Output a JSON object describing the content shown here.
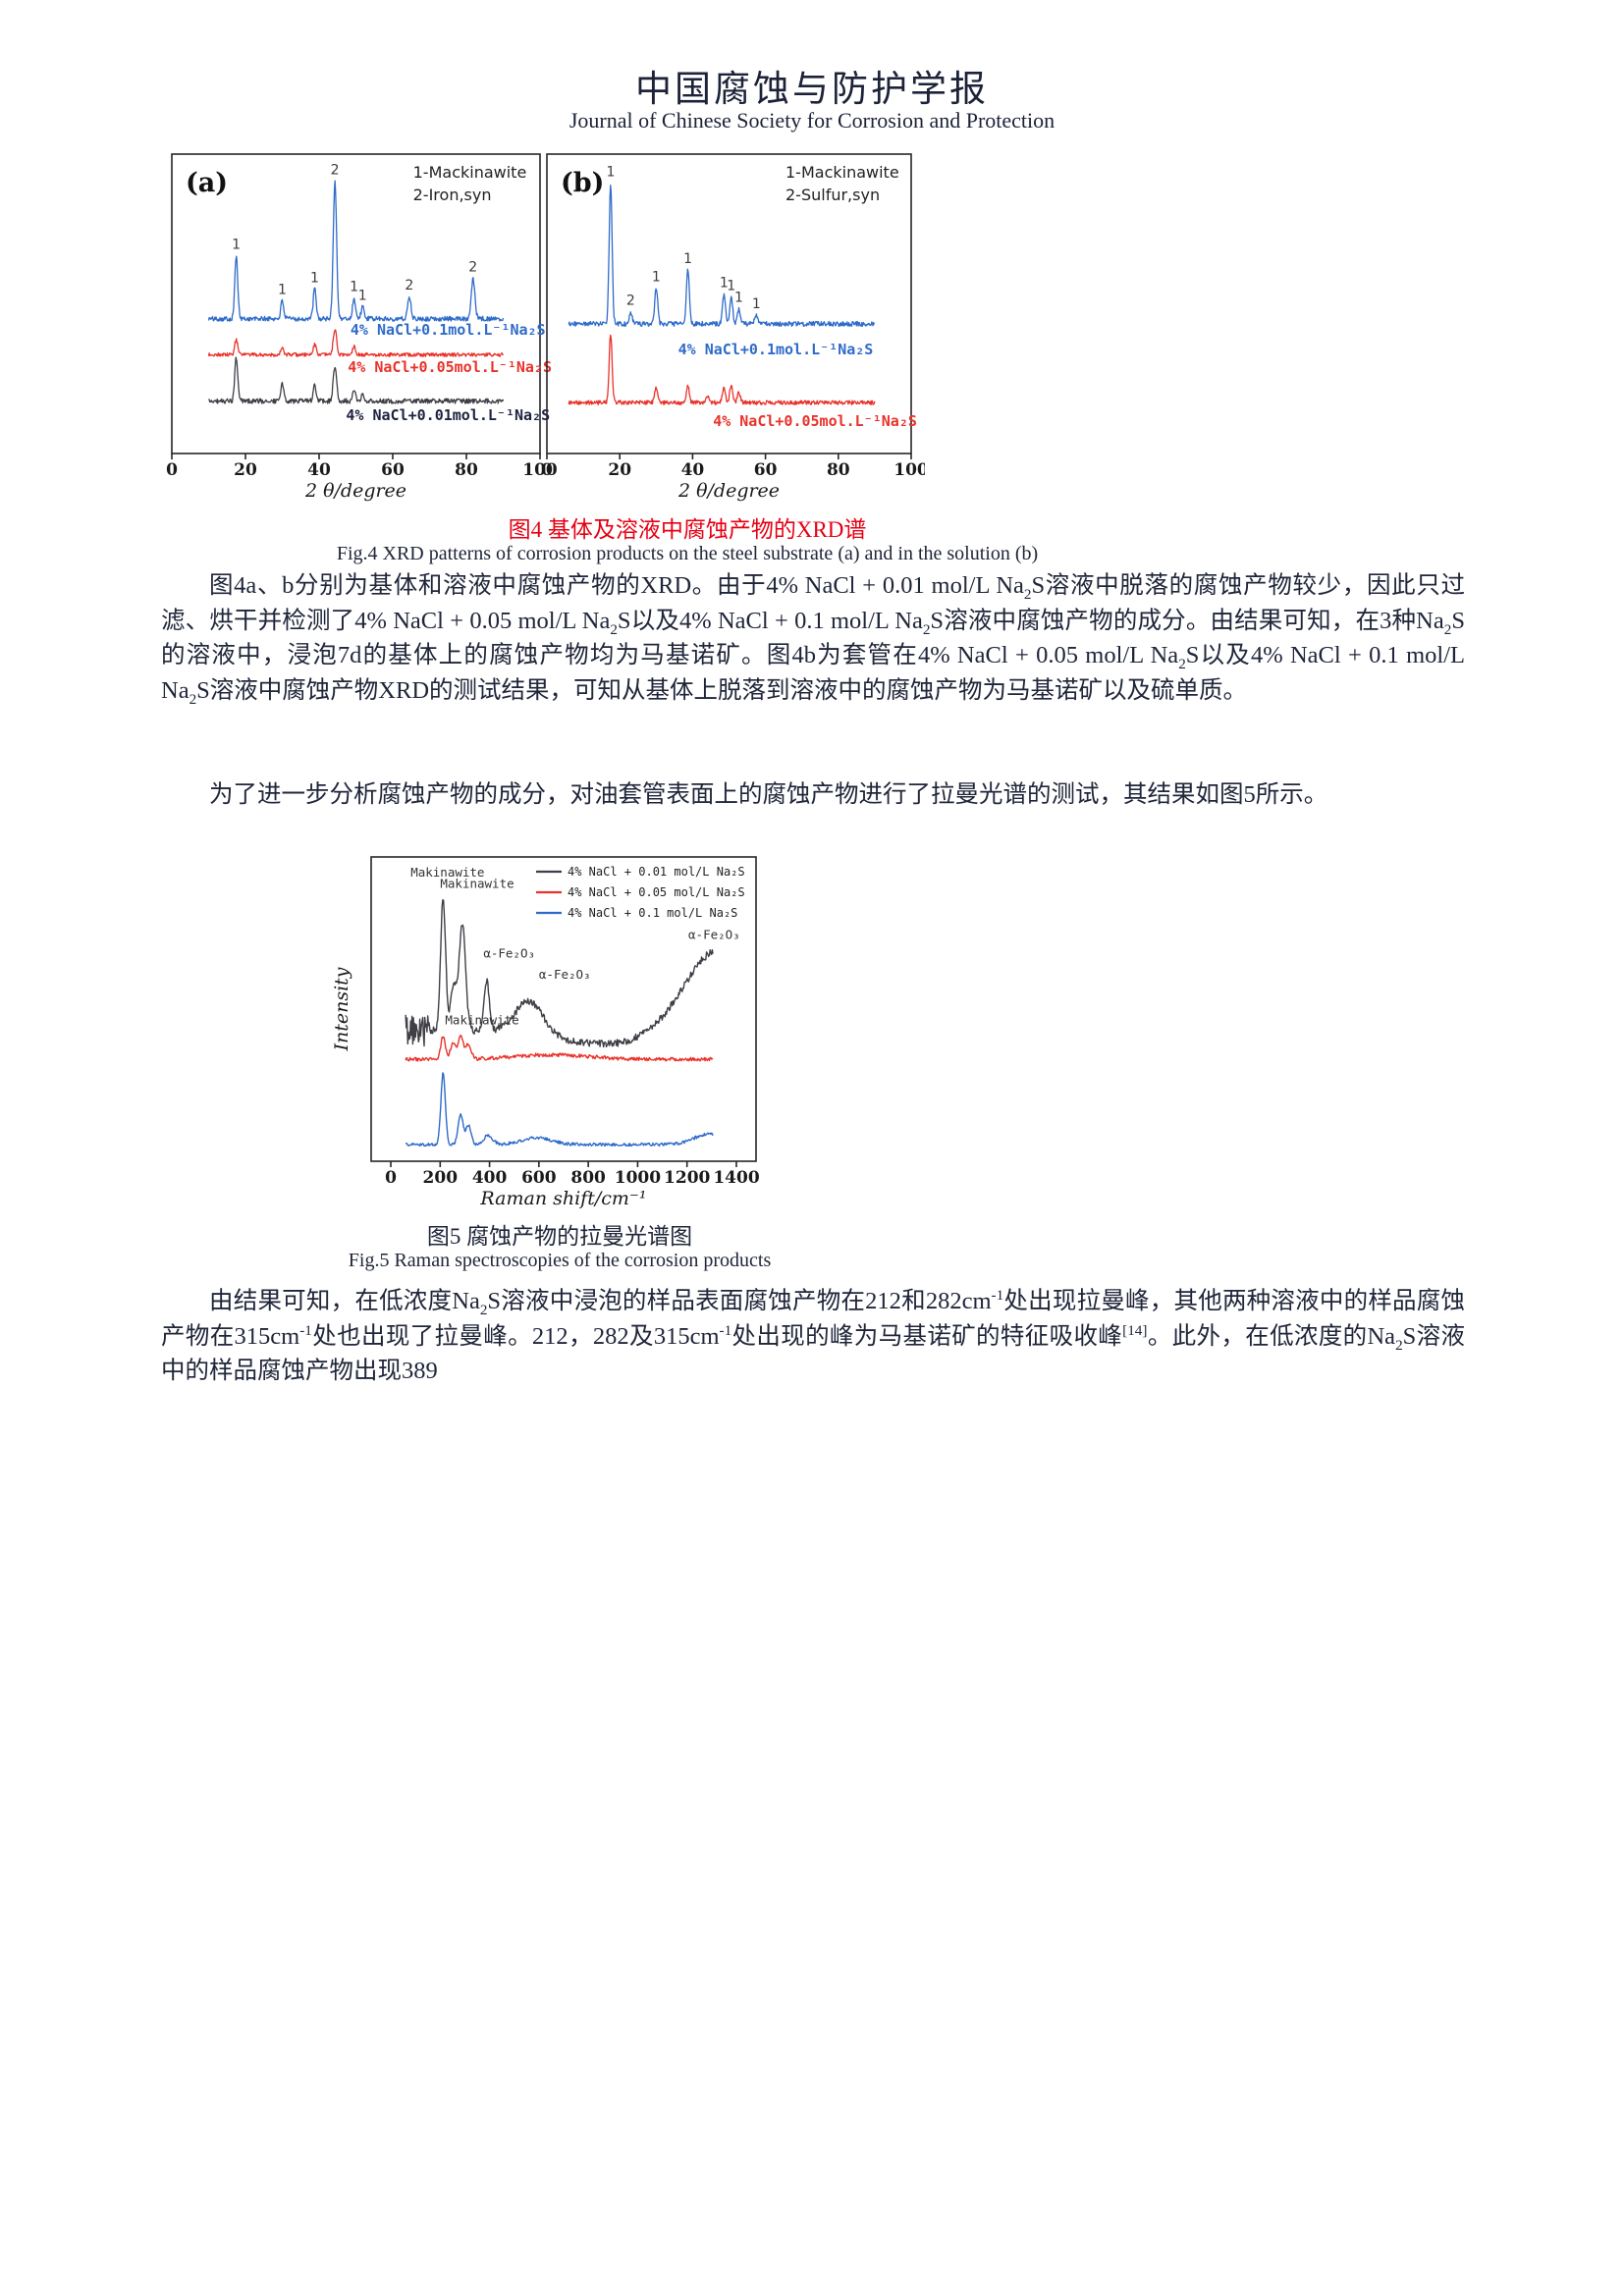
{
  "header": {
    "title_zh": "中国腐蚀与防护学报",
    "title_en": "Journal of Chinese Society for Corrosion and Protection"
  },
  "fig4": {
    "caption_zh": "图4 基体及溶液中腐蚀产物的XRD谱",
    "caption_en": "Fig.4 XRD patterns of corrosion products on the steel substrate (a) and in the solution (b)"
  },
  "fig5": {
    "caption_zh": "图5 腐蚀产物的拉曼光谱图",
    "caption_en": "Fig.5 Raman spectroscopies of the corrosion products"
  },
  "paragraphs": {
    "p1": [
      {
        "t": "图4a、b分别为基体和溶液中腐蚀产物的XRD。由于4% NaCl + 0.01 mol/L Na"
      },
      {
        "t": "2",
        "sub": true
      },
      {
        "t": "S溶液中脱落的腐蚀产物较少，因此只过滤、烘干并检测了4% NaCl + 0.05 mol/L Na"
      },
      {
        "t": "2",
        "sub": true
      },
      {
        "t": "S以及4% NaCl + 0.1 mol/L  Na"
      },
      {
        "t": "2",
        "sub": true
      },
      {
        "t": "S溶液中腐蚀产物的成分。由结果可知，在3种Na"
      },
      {
        "t": "2",
        "sub": true
      },
      {
        "t": "S的溶液中，浸泡7d的基体上的腐蚀产物均为马基诺矿。图4b为套管在4% NaCl + 0.05 mol/L Na"
      },
      {
        "t": "2",
        "sub": true
      },
      {
        "t": "S以及4% NaCl + 0.1 mol/L Na"
      },
      {
        "t": "2",
        "sub": true
      },
      {
        "t": "S溶液中腐蚀产物XRD的测试结果，可知从基体上脱落到溶液中的腐蚀产物为马基诺矿以及硫单质。"
      }
    ],
    "p2": [
      {
        "t": "为了进一步分析腐蚀产物的成分，对油套管表面上的腐蚀产物进行了拉曼光谱的测试，其结果如图5所示。"
      }
    ],
    "p3": [
      {
        "t": "由结果可知，在低浓度Na"
      },
      {
        "t": "2",
        "sub": true
      },
      {
        "t": "S溶液中浸泡的样品表面腐蚀产物在212和282cm"
      },
      {
        "t": "-1",
        "sup": true
      },
      {
        "t": "处出现拉曼峰，其他两种溶液中的样品腐蚀产物在315cm"
      },
      {
        "t": "-1",
        "sup": true
      },
      {
        "t": "处也出现了拉曼峰。212，282及315cm"
      },
      {
        "t": "-1",
        "sup": true
      },
      {
        "t": "处出现的峰为马基诺矿的特征吸收峰"
      },
      {
        "t": "[14]",
        "sup": true
      },
      {
        "t": "。此外，在低浓度的Na"
      },
      {
        "t": "2",
        "sub": true
      },
      {
        "t": "S溶液中的样品腐蚀产物出现389"
      }
    ]
  },
  "chart_data": [
    {
      "id": "fig4a",
      "type": "line",
      "panel_label": "(a)",
      "legend_lines": [
        "1-Mackinawite",
        "2-Iron,syn"
      ],
      "xlabel": "2 θ/degree",
      "xlim": [
        0,
        100
      ],
      "xticks": [
        0,
        20,
        40,
        60,
        80,
        100
      ],
      "series": [
        {
          "name": "4% NaCl+0.1 mol/L Na2S (substrate)",
          "label": "4% NaCl+0.1mol.L⁻¹Na₂S",
          "color": "#2f6bc9",
          "baseline": 0.45,
          "noise": 0.008,
          "seed": 101,
          "xdata": [
            10,
            90
          ],
          "points": 520,
          "peaks": [
            [
              17.5,
              0.21,
              0.4
            ],
            [
              30,
              0.06,
              0.4
            ],
            [
              38.8,
              0.1,
              0.4
            ],
            [
              44.3,
              0.46,
              0.45
            ],
            [
              49.5,
              0.07,
              0.4
            ],
            [
              51.8,
              0.04,
              0.4
            ],
            [
              64.5,
              0.075,
              0.45
            ],
            [
              81.8,
              0.135,
              0.5
            ]
          ],
          "peak_labels": [
            [
              17.5,
              "1"
            ],
            [
              30,
              "1"
            ],
            [
              38.8,
              "1"
            ],
            [
              44.3,
              "2"
            ],
            [
              49.5,
              "1"
            ],
            [
              51.8,
              "1"
            ],
            [
              64.5,
              "2"
            ],
            [
              81.8,
              "2"
            ]
          ]
        },
        {
          "name": "4% NaCl+0.05 mol/L Na2S (substrate)",
          "label": "4% NaCl+0.05mol.L⁻¹Na₂S",
          "color": "#e8332b",
          "baseline": 0.33,
          "noise": 0.006,
          "seed": 202,
          "xdata": [
            10,
            90
          ],
          "points": 520,
          "peaks": [
            [
              17.5,
              0.05,
              0.4
            ],
            [
              30,
              0.02,
              0.4
            ],
            [
              38.8,
              0.035,
              0.4
            ],
            [
              44.3,
              0.085,
              0.45
            ],
            [
              49.5,
              0.03,
              0.4
            ]
          ]
        },
        {
          "name": "4% NaCl+0.01 mol/L Na2S (substrate)",
          "label": "4% NaCl+0.01mol.L⁻¹Na₂S",
          "color": "#3f3f47",
          "label_color": "#1d2340",
          "baseline": 0.175,
          "noise": 0.008,
          "seed": 303,
          "xdata": [
            10,
            90
          ],
          "points": 520,
          "peaks": [
            [
              17.5,
              0.145,
              0.4
            ],
            [
              30,
              0.058,
              0.4
            ],
            [
              38.8,
              0.052,
              0.4
            ],
            [
              44.3,
              0.118,
              0.45
            ],
            [
              49.5,
              0.034,
              0.4
            ],
            [
              51.8,
              0.02,
              0.4
            ]
          ]
        }
      ]
    },
    {
      "id": "fig4b",
      "type": "line",
      "panel_label": "(b)",
      "legend_lines": [
        "1-Mackinawite",
        "2-Sulfur,syn"
      ],
      "xlabel": "2 θ/degree",
      "xlim": [
        0,
        100
      ],
      "xticks": [
        0,
        20,
        40,
        60,
        80,
        100
      ],
      "series": [
        {
          "name": "4% NaCl+0.1 mol/L Na2S (solution)",
          "label": "4% NaCl+0.1mol.L⁻¹Na₂S",
          "color": "#2f6bc9",
          "baseline": 0.433,
          "noise": 0.008,
          "seed": 404,
          "xdata": [
            6,
            90
          ],
          "points": 520,
          "peaks": [
            [
              17.5,
              0.47,
              0.4
            ],
            [
              23,
              0.04,
              0.4
            ],
            [
              30,
              0.12,
              0.4
            ],
            [
              38.7,
              0.18,
              0.4
            ],
            [
              48.6,
              0.1,
              0.4
            ],
            [
              50.6,
              0.09,
              0.4
            ],
            [
              52.7,
              0.05,
              0.4
            ],
            [
              57.5,
              0.03,
              0.4
            ]
          ],
          "peak_labels": [
            [
              17.5,
              "1"
            ],
            [
              23,
              "2"
            ],
            [
              30,
              "1"
            ],
            [
              38.7,
              "1"
            ],
            [
              48.6,
              "1"
            ],
            [
              50.6,
              "1"
            ],
            [
              52.7,
              "1"
            ],
            [
              57.5,
              "1"
            ]
          ]
        },
        {
          "name": "4% NaCl+0.05 mol/L Na2S (solution)",
          "label": "4% NaCl+0.05mol.L⁻¹Na₂S",
          "color": "#e8332b",
          "baseline": 0.17,
          "noise": 0.007,
          "seed": 505,
          "xdata": [
            6,
            90
          ],
          "points": 520,
          "peaks": [
            [
              17.5,
              0.23,
              0.4
            ],
            [
              30,
              0.05,
              0.4
            ],
            [
              38.7,
              0.06,
              0.4
            ],
            [
              44,
              0.02,
              0.4
            ],
            [
              48.6,
              0.05,
              0.4
            ],
            [
              50.6,
              0.06,
              0.4
            ],
            [
              52.7,
              0.035,
              0.4
            ]
          ]
        }
      ]
    },
    {
      "id": "fig5",
      "type": "line",
      "xlabel": "Raman shift/cm⁻¹",
      "ylabel": "Intensity",
      "xlim": [
        0,
        1400
      ],
      "xticks": [
        0,
        200,
        400,
        600,
        800,
        1000,
        1200,
        1400
      ],
      "legend": [
        {
          "label": "4% NaCl + 0.01 mol/L Na₂S",
          "color": "#3f3f47"
        },
        {
          "label": "4% NaCl + 0.05 mol/L Na₂S",
          "color": "#e8332b"
        },
        {
          "label": "4% NaCl + 0.1 mol/L Na₂S",
          "color": "#2f6bc9"
        }
      ],
      "annotations": [
        {
          "t": "Makinawite",
          "x": 230,
          "yf": 0.935
        },
        {
          "t": "Makinawite",
          "x": 350,
          "yf": 0.898
        },
        {
          "t": "Makinawite",
          "x": 370,
          "yf": 0.45
        },
        {
          "t": "α-Fe₂O₃",
          "x": 480,
          "yf": 0.67
        },
        {
          "t": "α-Fe₂O₃",
          "x": 705,
          "yf": 0.6
        },
        {
          "t": "α-Fe₂O₃",
          "x": 1310,
          "yf": 0.73
        }
      ],
      "series": [
        {
          "name": "4% NaCl + 0.01 mol/L Na2S",
          "color": "#3f3f47",
          "width": 1.4,
          "baseline": 0.43,
          "noise": 0.012,
          "noise2": [
            160,
            0.04
          ],
          "seed": 606,
          "xdata": [
            60,
            1305
          ],
          "points": 430,
          "peaks": [
            [
              212,
              0.435,
              10
            ],
            [
              255,
              0.15,
              12
            ],
            [
              290,
              0.35,
              13
            ],
            [
              389,
              0.16,
              11
            ],
            [
              560,
              0.11,
              55
            ],
            [
              880,
              -0.045,
              200
            ],
            [
              1330,
              0.27,
              140
            ]
          ]
        },
        {
          "name": "4% NaCl + 0.05 mol/L Na2S",
          "color": "#e8332b",
          "width": 1.4,
          "baseline": 0.335,
          "noise": 0.006,
          "seed": 707,
          "xdata": [
            60,
            1305
          ],
          "points": 430,
          "peaks": [
            [
              212,
              0.075,
              9
            ],
            [
              252,
              0.055,
              10
            ],
            [
              283,
              0.08,
              10
            ],
            [
              315,
              0.05,
              10
            ],
            [
              650,
              0.015,
              150
            ]
          ]
        },
        {
          "name": "4% NaCl + 0.1 mol/L Na2S",
          "color": "#2f6bc9",
          "width": 1.4,
          "baseline": 0.055,
          "noise": 0.005,
          "seed": 808,
          "xdata": [
            60,
            1305
          ],
          "points": 430,
          "peaks": [
            [
              212,
              0.235,
              9
            ],
            [
              283,
              0.1,
              10
            ],
            [
              315,
              0.065,
              10
            ],
            [
              395,
              0.03,
              18
            ],
            [
              590,
              0.022,
              60
            ],
            [
              1290,
              0.035,
              60
            ]
          ]
        }
      ]
    }
  ]
}
